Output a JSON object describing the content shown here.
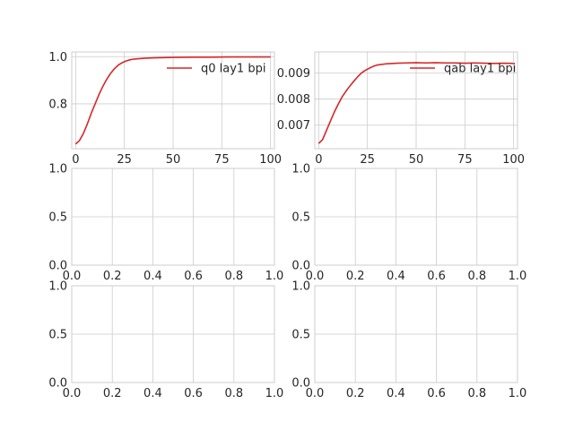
{
  "colors": {
    "line": "#d62728",
    "grid": "#cccccc",
    "spine": "#cccccc",
    "text": "#262626"
  },
  "chart_data": [
    {
      "type": "line",
      "legend_position": "upper-right",
      "grid": true,
      "xlim": [
        -2,
        102
      ],
      "ylim": [
        0.61,
        1.02
      ],
      "xticks": [
        0,
        25,
        50,
        75,
        100
      ],
      "yticks": [
        0.8,
        1.0
      ],
      "ytick_labels": [
        "0.8",
        "1.0"
      ],
      "series": [
        {
          "name": "q0 lay1 bpi",
          "x": [
            0,
            2,
            4,
            6,
            8,
            10,
            12,
            14,
            16,
            18,
            20,
            22,
            24,
            26,
            28,
            30,
            35,
            40,
            45,
            50,
            60,
            70,
            80,
            90,
            100
          ],
          "y": [
            0.63,
            0.645,
            0.675,
            0.715,
            0.76,
            0.8,
            0.84,
            0.875,
            0.905,
            0.93,
            0.95,
            0.965,
            0.975,
            0.982,
            0.987,
            0.99,
            0.993,
            0.995,
            0.996,
            0.997,
            0.998,
            0.998,
            0.999,
            0.999,
            0.999
          ]
        }
      ]
    },
    {
      "type": "line",
      "legend_position": "upper-right",
      "grid": true,
      "xlim": [
        -2,
        102
      ],
      "ylim": [
        0.0061,
        0.0098
      ],
      "xticks": [
        0,
        25,
        50,
        75,
        100
      ],
      "yticks": [
        0.007,
        0.008,
        0.009
      ],
      "ytick_labels": [
        "0.007",
        "0.008",
        "0.009"
      ],
      "series": [
        {
          "name": "qab lay1 bpi",
          "x": [
            0,
            2,
            4,
            6,
            8,
            10,
            12,
            14,
            16,
            18,
            20,
            22,
            24,
            26,
            28,
            30,
            35,
            40,
            45,
            50,
            55,
            60,
            65,
            70,
            75,
            80,
            85,
            90,
            95,
            100
          ],
          "y": [
            0.0063,
            0.00645,
            0.0068,
            0.00715,
            0.0075,
            0.0078,
            0.00808,
            0.0083,
            0.0085,
            0.00868,
            0.00885,
            0.009,
            0.0091,
            0.00918,
            0.00925,
            0.0093,
            0.00935,
            0.00937,
            0.00938,
            0.00939,
            0.00938,
            0.00939,
            0.00938,
            0.00938,
            0.00937,
            0.00938,
            0.00937,
            0.00936,
            0.00937,
            0.00936
          ]
        }
      ]
    },
    {
      "type": "line",
      "grid": true,
      "xlim": [
        0,
        1
      ],
      "ylim": [
        0,
        1
      ],
      "xticks": [
        0,
        0.2,
        0.4,
        0.6,
        0.8,
        1.0
      ],
      "xtick_labels": [
        "0.0",
        "0.2",
        "0.4",
        "0.6",
        "0.8",
        "1.0"
      ],
      "yticks": [
        0,
        0.5,
        1.0
      ],
      "ytick_labels": [
        "0.0",
        "0.5",
        "1.0"
      ],
      "series": []
    },
    {
      "type": "line",
      "grid": true,
      "xlim": [
        0,
        1
      ],
      "ylim": [
        0,
        1
      ],
      "xticks": [
        0,
        0.2,
        0.4,
        0.6,
        0.8,
        1.0
      ],
      "xtick_labels": [
        "0.0",
        "0.2",
        "0.4",
        "0.6",
        "0.8",
        "1.0"
      ],
      "yticks": [
        0,
        0.5,
        1.0
      ],
      "ytick_labels": [
        "0.0",
        "0.5",
        "1.0"
      ],
      "series": []
    },
    {
      "type": "line",
      "grid": true,
      "xlim": [
        0,
        1
      ],
      "ylim": [
        0,
        1
      ],
      "xticks": [
        0,
        0.2,
        0.4,
        0.6,
        0.8,
        1.0
      ],
      "xtick_labels": [
        "0.0",
        "0.2",
        "0.4",
        "0.6",
        "0.8",
        "1.0"
      ],
      "yticks": [
        0,
        0.5,
        1.0
      ],
      "ytick_labels": [
        "0.0",
        "0.5",
        "1.0"
      ],
      "series": []
    },
    {
      "type": "line",
      "grid": true,
      "xlim": [
        0,
        1
      ],
      "ylim": [
        0,
        1
      ],
      "xticks": [
        0,
        0.2,
        0.4,
        0.6,
        0.8,
        1.0
      ],
      "xtick_labels": [
        "0.0",
        "0.2",
        "0.4",
        "0.6",
        "0.8",
        "1.0"
      ],
      "yticks": [
        0,
        0.5,
        1.0
      ],
      "ytick_labels": [
        "0.0",
        "0.5",
        "1.0"
      ],
      "series": []
    }
  ]
}
